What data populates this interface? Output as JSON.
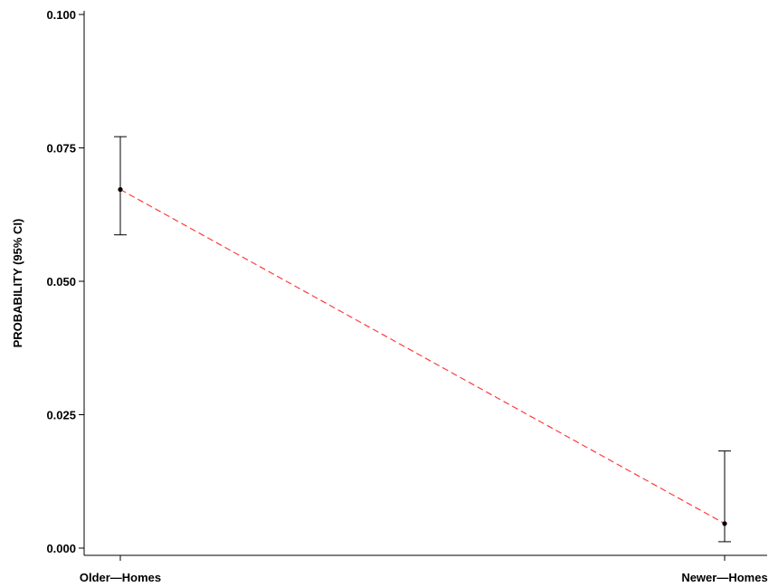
{
  "chart_data": {
    "type": "line",
    "title": "",
    "xlabel": "",
    "ylabel": "PROBABILITY (95% CI)",
    "categories": [
      "Older—Homes",
      "Newer—Homes"
    ],
    "y_ticks": [
      "0.000",
      "0.025",
      "0.050",
      "0.075",
      "0.100"
    ],
    "ylim": [
      0,
      0.1
    ],
    "grid": false,
    "series": [
      {
        "values": [
          0.0672,
          0.0046
        ],
        "ci_lower": [
          0.0587,
          0.0012
        ],
        "ci_upper": [
          0.0771,
          0.0182
        ],
        "color": "#ff3b3b",
        "line_style": "dashed",
        "marker_color": "#000000"
      }
    ]
  }
}
